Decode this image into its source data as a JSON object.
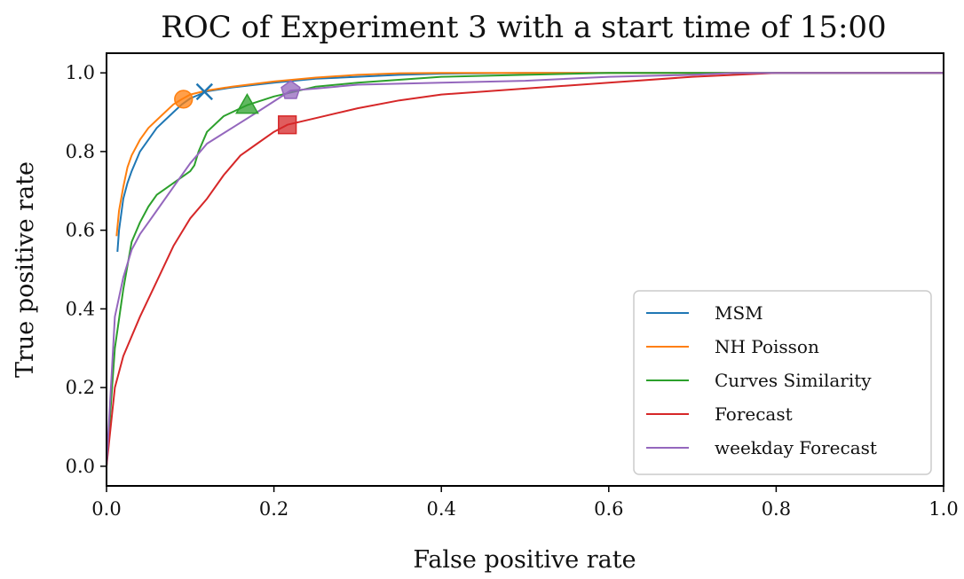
{
  "chart_data": {
    "type": "line",
    "title": "ROC of Experiment 3 with a start time of 15:00",
    "xlabel": "False positive rate",
    "ylabel": "True positive rate",
    "xlim": [
      0,
      1
    ],
    "ylim": [
      -0.05,
      1.05
    ],
    "xticks": [
      "0.0",
      "0.2",
      "0.4",
      "0.6",
      "0.8",
      "1.0"
    ],
    "yticks": [
      "0.0",
      "0.2",
      "0.4",
      "0.6",
      "0.8",
      "1.0"
    ],
    "grid": false,
    "legend_position": "lower-right",
    "series": [
      {
        "name": "MSM",
        "color": "#1f77b4",
        "marker": "x",
        "marker_point": [
          0.117,
          0.952
        ],
        "x": [
          0.013,
          0.015,
          0.02,
          0.025,
          0.03,
          0.04,
          0.05,
          0.06,
          0.07,
          0.08,
          0.09,
          0.1,
          0.12,
          0.15,
          0.2,
          0.25,
          0.3,
          0.35,
          0.4,
          0.5,
          0.6,
          0.7,
          0.8,
          0.9,
          1.0
        ],
        "y": [
          0.545,
          0.6,
          0.68,
          0.72,
          0.75,
          0.8,
          0.83,
          0.86,
          0.88,
          0.9,
          0.92,
          0.935,
          0.953,
          0.963,
          0.975,
          0.985,
          0.99,
          0.995,
          0.998,
          1.0,
          1.0,
          1.0,
          1.0,
          1.0,
          1.0
        ]
      },
      {
        "name": "NH Poisson",
        "color": "#ff7f0e",
        "marker": "circle",
        "marker_point": [
          0.092,
          0.933
        ],
        "x": [
          0.012,
          0.015,
          0.02,
          0.025,
          0.03,
          0.04,
          0.05,
          0.06,
          0.07,
          0.08,
          0.09,
          0.1,
          0.12,
          0.15,
          0.2,
          0.25,
          0.3,
          0.35,
          0.4,
          0.5,
          0.6,
          0.7,
          0.8,
          0.9,
          1.0
        ],
        "y": [
          0.585,
          0.65,
          0.71,
          0.76,
          0.79,
          0.83,
          0.86,
          0.88,
          0.9,
          0.92,
          0.933,
          0.945,
          0.955,
          0.965,
          0.978,
          0.988,
          0.995,
          0.999,
          1.0,
          1.0,
          1.0,
          1.0,
          1.0,
          1.0,
          1.0
        ]
      },
      {
        "name": "Curves Similarity",
        "color": "#2ca02c",
        "marker": "triangle",
        "marker_point": [
          0.168,
          0.918
        ],
        "x": [
          0.0,
          0.01,
          0.02,
          0.03,
          0.04,
          0.05,
          0.06,
          0.08,
          0.1,
          0.105,
          0.11,
          0.12,
          0.14,
          0.168,
          0.2,
          0.25,
          0.3,
          0.4,
          0.5,
          0.6,
          0.7,
          0.8,
          0.9,
          1.0
        ],
        "y": [
          0.0,
          0.3,
          0.45,
          0.57,
          0.62,
          0.66,
          0.69,
          0.72,
          0.75,
          0.765,
          0.8,
          0.85,
          0.89,
          0.918,
          0.94,
          0.965,
          0.975,
          0.99,
          0.995,
          1.0,
          1.0,
          1.0,
          1.0,
          1.0
        ]
      },
      {
        "name": "Forecast",
        "color": "#d62728",
        "marker": "square",
        "marker_point": [
          0.216,
          0.868
        ],
        "x": [
          0.0,
          0.01,
          0.02,
          0.04,
          0.06,
          0.08,
          0.1,
          0.12,
          0.14,
          0.16,
          0.18,
          0.2,
          0.216,
          0.25,
          0.3,
          0.35,
          0.4,
          0.5,
          0.6,
          0.7,
          0.8,
          0.9,
          1.0
        ],
        "y": [
          0.0,
          0.2,
          0.28,
          0.38,
          0.47,
          0.56,
          0.63,
          0.68,
          0.74,
          0.79,
          0.82,
          0.85,
          0.868,
          0.885,
          0.91,
          0.93,
          0.945,
          0.96,
          0.975,
          0.99,
          1.0,
          1.0,
          1.0
        ]
      },
      {
        "name": "weekday Forecast",
        "color": "#9467bd",
        "marker": "pentagon",
        "marker_point": [
          0.22,
          0.955
        ],
        "x": [
          0.0,
          0.01,
          0.02,
          0.03,
          0.04,
          0.05,
          0.06,
          0.08,
          0.1,
          0.12,
          0.15,
          0.18,
          0.22,
          0.25,
          0.3,
          0.4,
          0.5,
          0.6,
          0.7,
          0.75,
          0.8,
          0.9,
          1.0
        ],
        "y": [
          0.0,
          0.38,
          0.48,
          0.55,
          0.59,
          0.62,
          0.65,
          0.71,
          0.77,
          0.82,
          0.86,
          0.9,
          0.955,
          0.96,
          0.97,
          0.975,
          0.98,
          0.99,
          0.995,
          1.0,
          1.0,
          1.0,
          1.0
        ]
      }
    ]
  }
}
